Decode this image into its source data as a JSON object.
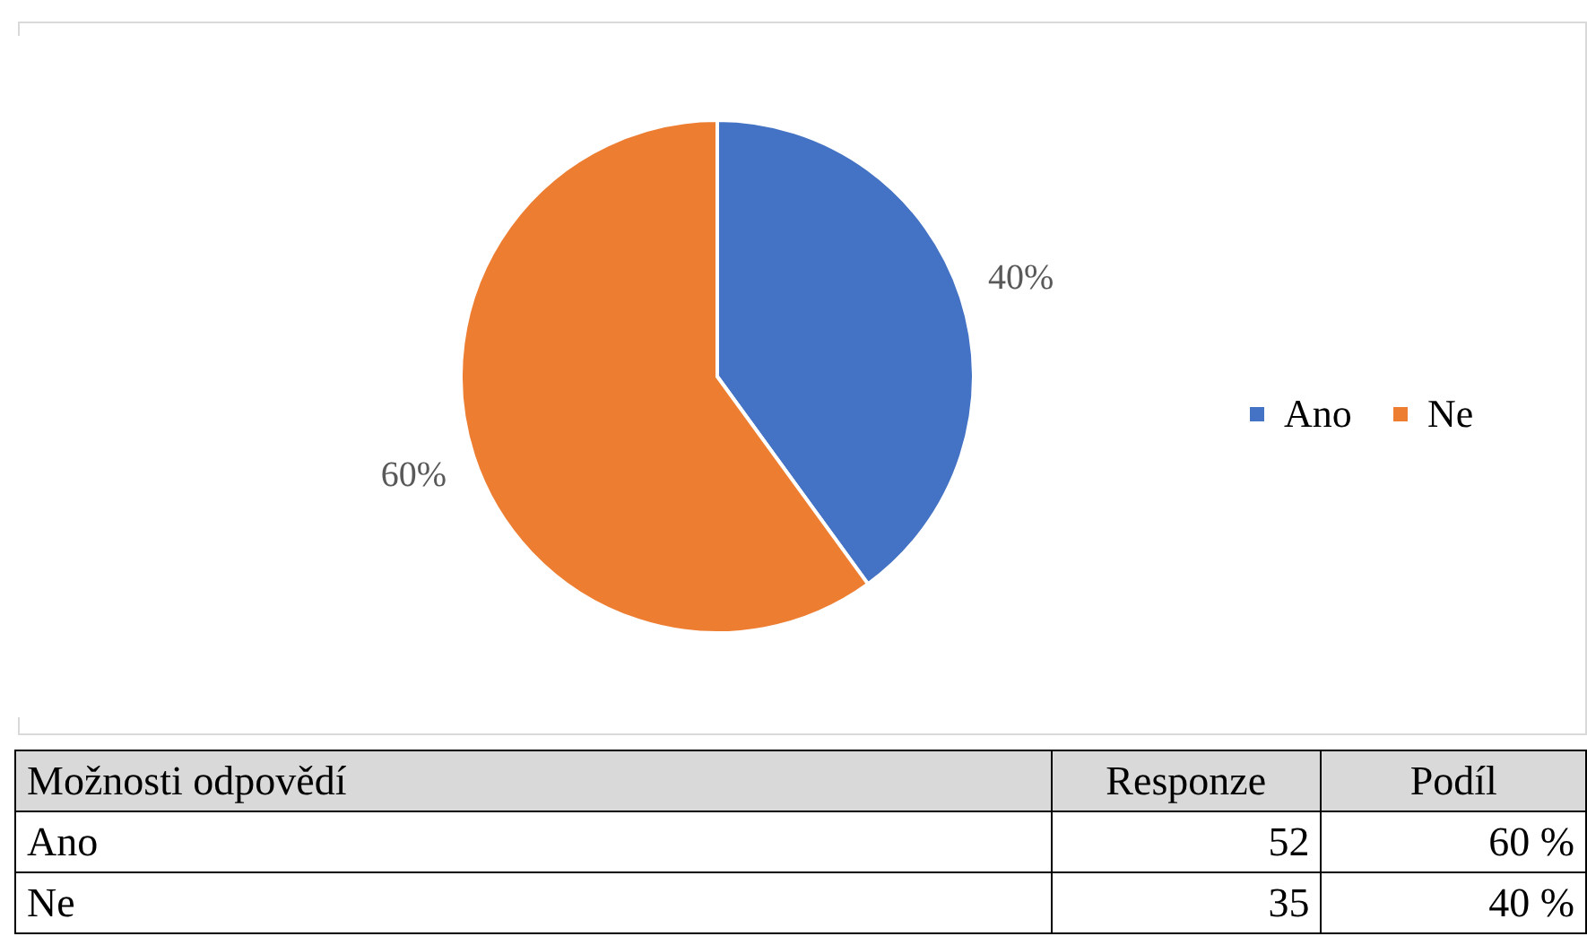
{
  "chart_data": {
    "type": "pie",
    "categories": [
      "Ano",
      "Ne"
    ],
    "values": [
      40,
      60
    ],
    "colors": [
      "#4472c4",
      "#ed7d31"
    ],
    "value_labels": [
      "40%",
      "60%"
    ],
    "legend": "right",
    "annotations": [
      "Možnosti odpovědí",
      "Responze",
      "Podíl",
      "Ano",
      "52",
      "60 %",
      "Ne",
      "35",
      "40 %"
    ]
  }
}
